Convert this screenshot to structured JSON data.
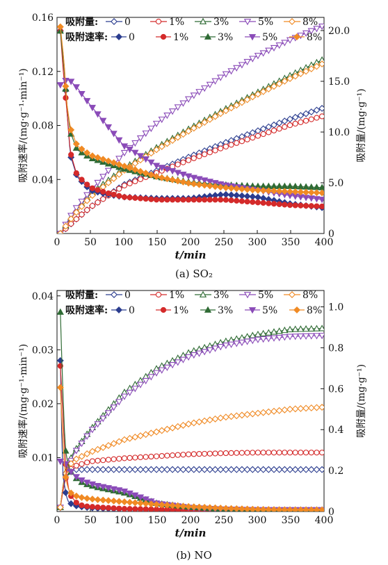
{
  "captions": [
    "(a) SO₂",
    "(b) NO"
  ],
  "chart_data": [
    {
      "type": "line",
      "xlabel": "t/min",
      "ylabel_left": "吸附速率/(mg·g⁻¹·min⁻¹)",
      "ylabel_right": "吸附量/(mg·g⁻¹)",
      "xlim": [
        0,
        400
      ],
      "ylim_left": [
        0,
        0.16
      ],
      "ylim_right": [
        0,
        21.3
      ],
      "xticks": [
        0,
        50,
        100,
        150,
        200,
        250,
        300,
        350,
        400
      ],
      "xtick_labels": [
        "0",
        "50",
        "100",
        "150",
        "200",
        "250",
        "300",
        "350",
        "400"
      ],
      "yticks_left": [
        0.04,
        0.08,
        0.12,
        0.16
      ],
      "ytick_labels_left": [
        "0.04",
        "0.08",
        "0.12",
        "0.16"
      ],
      "yticks_right": [
        0,
        5,
        10,
        15,
        20
      ],
      "ytick_labels_right": [
        "0",
        "5.0",
        "10.0",
        "15.0",
        "20.0"
      ],
      "legend": {
        "position": "top-left",
        "capacity_title": "吸附量:",
        "rate_title": "吸附速率:",
        "labels": [
          "0",
          "1%",
          "3%",
          "5%",
          "8%"
        ]
      },
      "colors": [
        "#2b3d8f",
        "#d42a2a",
        "#2f6b34",
        "#8a4bb8",
        "#f08a24"
      ],
      "capacity_markers": [
        "diamond-open",
        "circle-open",
        "triangle-up-open",
        "triangle-down-open",
        "diamond-open"
      ],
      "rate_markers": [
        "diamond",
        "circle",
        "triangle-up",
        "triangle-down",
        "diamond"
      ],
      "capacity_series": [
        {
          "name": "0",
          "axis": "right",
          "x": [
            5,
            25,
            50,
            100,
            150,
            200,
            250,
            300,
            350,
            400
          ],
          "y": [
            0,
            1.2,
            2.6,
            4.8,
            6.2,
            7.6,
            8.9,
            10.1,
            11.3,
            12.4
          ]
        },
        {
          "name": "1%",
          "axis": "right",
          "x": [
            5,
            25,
            50,
            100,
            150,
            200,
            250,
            300,
            350,
            400
          ],
          "y": [
            0,
            1.2,
            2.6,
            4.7,
            6.0,
            7.3,
            8.5,
            9.6,
            10.7,
            11.6
          ]
        },
        {
          "name": "3%",
          "axis": "right",
          "x": [
            5,
            25,
            50,
            100,
            150,
            200,
            250,
            300,
            350,
            400
          ],
          "y": [
            0,
            2.0,
            3.9,
            6.4,
            8.5,
            10.4,
            12.2,
            13.9,
            15.6,
            17.2
          ]
        },
        {
          "name": "5%",
          "axis": "right",
          "x": [
            5,
            25,
            50,
            100,
            150,
            200,
            250,
            300,
            350,
            400
          ],
          "y": [
            0,
            2.2,
            4.2,
            7.9,
            10.9,
            13.4,
            15.6,
            17.5,
            19.1,
            20.5
          ]
        },
        {
          "name": "8%",
          "axis": "right",
          "x": [
            5,
            25,
            50,
            100,
            150,
            200,
            250,
            300,
            350,
            400
          ],
          "y": [
            0,
            1.8,
            3.6,
            6.2,
            8.3,
            10.2,
            12.0,
            13.7,
            15.3,
            16.8
          ]
        }
      ],
      "rate_series": [
        {
          "name": "0",
          "axis": "left",
          "x": [
            5,
            10,
            15,
            20,
            30,
            50,
            75,
            100,
            150,
            200,
            250,
            300,
            350,
            400
          ],
          "y": [
            0.15,
            0.13,
            0.09,
            0.058,
            0.042,
            0.032,
            0.029,
            0.027,
            0.026,
            0.026,
            0.029,
            0.027,
            0.022,
            0.019
          ]
        },
        {
          "name": "1%",
          "axis": "left",
          "x": [
            5,
            10,
            15,
            20,
            30,
            50,
            75,
            100,
            150,
            200,
            250,
            300,
            350,
            400
          ],
          "y": [
            0.15,
            0.116,
            0.09,
            0.06,
            0.043,
            0.034,
            0.03,
            0.027,
            0.025,
            0.025,
            0.025,
            0.023,
            0.021,
            0.02
          ]
        },
        {
          "name": "3%",
          "axis": "left",
          "x": [
            5,
            10,
            15,
            20,
            30,
            50,
            75,
            100,
            150,
            200,
            250,
            300,
            350,
            400
          ],
          "y": [
            0.15,
            0.125,
            0.095,
            0.075,
            0.062,
            0.056,
            0.052,
            0.048,
            0.042,
            0.038,
            0.036,
            0.035,
            0.035,
            0.034
          ]
        },
        {
          "name": "5%",
          "axis": "left",
          "x": [
            5,
            10,
            15,
            20,
            30,
            50,
            75,
            100,
            150,
            200,
            250,
            300,
            350,
            400
          ],
          "y": [
            0.11,
            0.112,
            0.114,
            0.113,
            0.108,
            0.095,
            0.08,
            0.065,
            0.05,
            0.042,
            0.036,
            0.032,
            0.028,
            0.025
          ]
        },
        {
          "name": "8%",
          "axis": "left",
          "x": [
            5,
            10,
            15,
            20,
            30,
            50,
            75,
            100,
            150,
            200,
            250,
            300,
            350,
            400
          ],
          "y": [
            0.153,
            0.13,
            0.095,
            0.078,
            0.065,
            0.058,
            0.054,
            0.05,
            0.042,
            0.037,
            0.034,
            0.032,
            0.031,
            0.03
          ]
        }
      ]
    },
    {
      "type": "line",
      "xlabel": "t/min",
      "ylabel_left": "吸附速率/(mg·g⁻¹·min⁻¹)",
      "ylabel_right": "吸附量/(mg·g⁻¹)",
      "xlim": [
        0,
        400
      ],
      "ylim_left": [
        0,
        0.041
      ],
      "ylim_right": [
        0,
        1.08
      ],
      "xticks": [
        0,
        50,
        100,
        150,
        200,
        250,
        300,
        350,
        400
      ],
      "xtick_labels": [
        "0",
        "50",
        "100",
        "150",
        "200",
        "250",
        "300",
        "350",
        "400"
      ],
      "yticks_left": [
        0.01,
        0.02,
        0.03,
        0.04
      ],
      "ytick_labels_left": [
        "0.01",
        "0.02",
        "0.03",
        "0.04"
      ],
      "yticks_right": [
        0,
        0.2,
        0.4,
        0.6,
        0.8,
        1.0
      ],
      "ytick_labels_right": [
        "0",
        "0.2",
        "0.4",
        "0.6",
        "0.8",
        "1.0"
      ],
      "legend": {
        "position": "top-left",
        "capacity_title": "吸附量:",
        "rate_title": "吸附速率:",
        "labels": [
          "0",
          "1%",
          "3%",
          "5%",
          "8%"
        ]
      },
      "colors": [
        "#2b3d8f",
        "#d42a2a",
        "#2f6b34",
        "#8a4bb8",
        "#f08a24"
      ],
      "capacity_markers": [
        "diamond-open",
        "circle-open",
        "triangle-up-open",
        "triangle-down-open",
        "diamond-open"
      ],
      "rate_markers": [
        "diamond",
        "circle",
        "triangle-up",
        "triangle-down",
        "diamond"
      ],
      "capacity_series": [
        {
          "name": "0",
          "axis": "right",
          "x": [
            5,
            10,
            15,
            25,
            50,
            100,
            150,
            200,
            250,
            300,
            350,
            400
          ],
          "y": [
            0.02,
            0.15,
            0.2,
            0.205,
            0.205,
            0.205,
            0.205,
            0.205,
            0.205,
            0.205,
            0.205,
            0.205
          ]
        },
        {
          "name": "1%",
          "axis": "right",
          "x": [
            5,
            10,
            15,
            25,
            50,
            100,
            150,
            200,
            250,
            300,
            350,
            400
          ],
          "y": [
            0.02,
            0.12,
            0.19,
            0.22,
            0.245,
            0.26,
            0.27,
            0.28,
            0.285,
            0.288,
            0.288,
            0.288
          ]
        },
        {
          "name": "3%",
          "axis": "right",
          "x": [
            5,
            10,
            15,
            25,
            50,
            100,
            150,
            200,
            250,
            300,
            350,
            400
          ],
          "y": [
            0.02,
            0.15,
            0.22,
            0.29,
            0.4,
            0.58,
            0.7,
            0.78,
            0.83,
            0.865,
            0.89,
            0.895
          ]
        },
        {
          "name": "5%",
          "axis": "right",
          "x": [
            5,
            10,
            15,
            25,
            50,
            100,
            150,
            200,
            250,
            300,
            350,
            400
          ],
          "y": [
            0.02,
            0.14,
            0.2,
            0.28,
            0.39,
            0.56,
            0.68,
            0.76,
            0.81,
            0.84,
            0.855,
            0.86
          ]
        },
        {
          "name": "8%",
          "axis": "right",
          "x": [
            5,
            10,
            15,
            25,
            50,
            100,
            150,
            200,
            250,
            300,
            350,
            400
          ],
          "y": [
            0.02,
            0.15,
            0.21,
            0.25,
            0.29,
            0.35,
            0.39,
            0.43,
            0.46,
            0.48,
            0.5,
            0.51
          ]
        }
      ],
      "rate_series": [
        {
          "name": "0",
          "axis": "left",
          "x": [
            5,
            8,
            12,
            16,
            20,
            30,
            40,
            60,
            100,
            150,
            200,
            250,
            300,
            350,
            400
          ],
          "y": [
            0.028,
            0.008,
            0.004,
            0.002,
            0.0015,
            0.001,
            0.0008,
            0.0006,
            0.0004,
            0.0003,
            0.0002,
            0.0001,
            0.0001,
            0.0001,
            0.0001
          ]
        },
        {
          "name": "1%",
          "axis": "left",
          "x": [
            5,
            8,
            12,
            16,
            20,
            30,
            40,
            60,
            100,
            150,
            200,
            250,
            300,
            350,
            400
          ],
          "y": [
            0.027,
            0.02,
            0.01,
            0.005,
            0.003,
            0.0015,
            0.001,
            0.0008,
            0.0005,
            0.0004,
            0.0003,
            0.0002,
            0.0002,
            0.0001,
            0.0001
          ]
        },
        {
          "name": "3%",
          "axis": "left",
          "x": [
            5,
            8,
            12,
            16,
            20,
            30,
            40,
            60,
            100,
            150,
            200,
            250,
            300,
            350,
            400
          ],
          "y": [
            0.037,
            0.025,
            0.012,
            0.009,
            0.0075,
            0.006,
            0.0052,
            0.0045,
            0.0035,
            0.0015,
            0.0008,
            0.0004,
            0.0003,
            0.0003,
            0.0003
          ]
        },
        {
          "name": "5%",
          "axis": "left",
          "x": [
            5,
            8,
            12,
            16,
            20,
            30,
            40,
            60,
            100,
            150,
            200,
            250,
            300,
            350,
            400
          ],
          "y": [
            0.0093,
            0.0094,
            0.009,
            0.0083,
            0.0075,
            0.0063,
            0.0056,
            0.0048,
            0.0038,
            0.0015,
            0.0007,
            0.0004,
            0.0003,
            0.0003,
            0.0003
          ]
        },
        {
          "name": "8%",
          "axis": "left",
          "x": [
            5,
            8,
            12,
            16,
            20,
            30,
            40,
            60,
            100,
            150,
            200,
            250,
            300,
            350,
            400
          ],
          "y": [
            0.023,
            0.015,
            0.007,
            0.0045,
            0.0035,
            0.0028,
            0.0025,
            0.0022,
            0.0018,
            0.0013,
            0.0009,
            0.0006,
            0.0004,
            0.0003,
            0.0003
          ]
        }
      ]
    }
  ]
}
